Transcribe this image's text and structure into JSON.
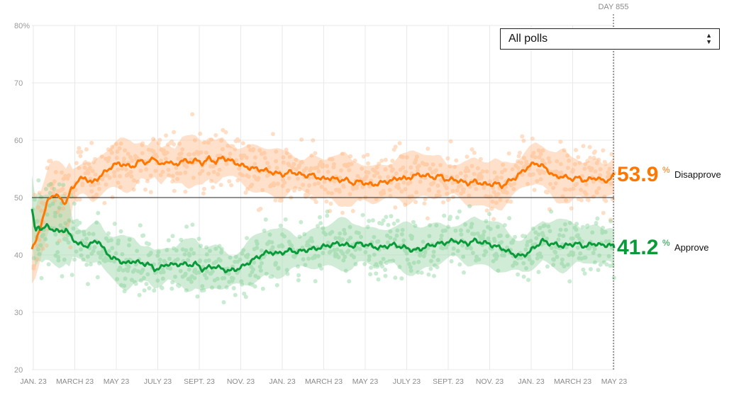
{
  "filter": {
    "label": "All polls",
    "options": [
      "All polls"
    ]
  },
  "day_marker": {
    "label": "DAY 855"
  },
  "colors": {
    "disapprove": "#ff7600",
    "approve": "#0a9a3a",
    "disapprove_light": "#ffc9a0",
    "approve_light": "#a9dcb4",
    "gridline": "#e8e8e8",
    "baseline": "#222222"
  },
  "chart_data": {
    "type": "line",
    "x_ticks": [
      "JAN. 23",
      "MARCH 23",
      "MAY 23",
      "JULY 23",
      "SEPT. 23",
      "NOV. 23",
      "JAN. 23",
      "MARCH 23",
      "MAY 23",
      "JULY 23",
      "SEPT. 23",
      "NOV. 23",
      "JAN. 23",
      "MARCH 23",
      "MAY 23"
    ],
    "y_ticks": [
      "80%",
      "70",
      "60",
      "50",
      "40",
      "30",
      "20"
    ],
    "ylim": [
      20,
      80
    ],
    "reference_line": 50,
    "x_day_range": [
      0,
      855
    ],
    "series": [
      {
        "name": "Disapprove",
        "final_value": "53.9",
        "points": [
          [
            0,
            41
          ],
          [
            5,
            42
          ],
          [
            10,
            44
          ],
          [
            15,
            46
          ],
          [
            20,
            48
          ],
          [
            25,
            50
          ],
          [
            32,
            50.5
          ],
          [
            40,
            50
          ],
          [
            50,
            49
          ],
          [
            58,
            51.5
          ],
          [
            68,
            53
          ],
          [
            78,
            53.5
          ],
          [
            88,
            52.5
          ],
          [
            98,
            53.5
          ],
          [
            108,
            54.5
          ],
          [
            118,
            55.5
          ],
          [
            128,
            56
          ],
          [
            140,
            55.5
          ],
          [
            150,
            55.5
          ],
          [
            160,
            56.5
          ],
          [
            170,
            56
          ],
          [
            180,
            57
          ],
          [
            190,
            55.5
          ],
          [
            200,
            56.5
          ],
          [
            210,
            55.5
          ],
          [
            220,
            56.5
          ],
          [
            230,
            56.2
          ],
          [
            240,
            56.5
          ],
          [
            250,
            56
          ],
          [
            260,
            56.8
          ],
          [
            270,
            56.2
          ],
          [
            280,
            57
          ],
          [
            290,
            56.5
          ],
          [
            300,
            56
          ],
          [
            310,
            55.5
          ],
          [
            320,
            55.2
          ],
          [
            330,
            55
          ],
          [
            340,
            54.8
          ],
          [
            350,
            54.5
          ],
          [
            360,
            54.2
          ],
          [
            370,
            54
          ],
          [
            380,
            54.5
          ],
          [
            390,
            54.2
          ],
          [
            400,
            53.8
          ],
          [
            410,
            54
          ],
          [
            420,
            53.5
          ],
          [
            430,
            53.2
          ],
          [
            440,
            53.5
          ],
          [
            450,
            53
          ],
          [
            460,
            53.2
          ],
          [
            470,
            52.5
          ],
          [
            480,
            52.8
          ],
          [
            490,
            52.5
          ],
          [
            500,
            52.2
          ],
          [
            510,
            52.5
          ],
          [
            520,
            52.8
          ],
          [
            530,
            53
          ],
          [
            540,
            53.5
          ],
          [
            550,
            53.2
          ],
          [
            560,
            53.8
          ],
          [
            570,
            54
          ],
          [
            580,
            53.8
          ],
          [
            590,
            53.5
          ],
          [
            600,
            53.8
          ],
          [
            610,
            53
          ],
          [
            620,
            53.2
          ],
          [
            630,
            52.8
          ],
          [
            640,
            52.5
          ],
          [
            650,
            52.8
          ],
          [
            660,
            52.5
          ],
          [
            670,
            52.2
          ],
          [
            680,
            52.5
          ],
          [
            690,
            52
          ],
          [
            700,
            52.8
          ],
          [
            710,
            53.5
          ],
          [
            720,
            54.5
          ],
          [
            730,
            55.5
          ],
          [
            740,
            56
          ],
          [
            750,
            55.5
          ],
          [
            760,
            54.5
          ],
          [
            770,
            53.5
          ],
          [
            780,
            53.8
          ],
          [
            790,
            53.2
          ],
          [
            800,
            53.5
          ],
          [
            810,
            53
          ],
          [
            820,
            53.2
          ],
          [
            830,
            53.5
          ],
          [
            840,
            52.8
          ],
          [
            848,
            53.2
          ],
          [
            855,
            53.9
          ]
        ]
      },
      {
        "name": "Approve",
        "final_value": "41.2",
        "points": [
          [
            0,
            48
          ],
          [
            5,
            44
          ],
          [
            10,
            45
          ],
          [
            15,
            44.5
          ],
          [
            22,
            45
          ],
          [
            30,
            44.5
          ],
          [
            40,
            44
          ],
          [
            50,
            44.5
          ],
          [
            58,
            43
          ],
          [
            68,
            42
          ],
          [
            78,
            41.5
          ],
          [
            88,
            42
          ],
          [
            98,
            42.5
          ],
          [
            108,
            40.5
          ],
          [
            118,
            39.5
          ],
          [
            128,
            39
          ],
          [
            140,
            38.5
          ],
          [
            150,
            39
          ],
          [
            160,
            38.5
          ],
          [
            170,
            38.5
          ],
          [
            180,
            37.5
          ],
          [
            190,
            37.8
          ],
          [
            200,
            38.5
          ],
          [
            210,
            38.2
          ],
          [
            220,
            38.5
          ],
          [
            230,
            38.2
          ],
          [
            240,
            38.5
          ],
          [
            250,
            37.5
          ],
          [
            260,
            37.8
          ],
          [
            270,
            38
          ],
          [
            280,
            37.5
          ],
          [
            290,
            37.2
          ],
          [
            300,
            37.5
          ],
          [
            310,
            38
          ],
          [
            320,
            38.8
          ],
          [
            330,
            39.5
          ],
          [
            340,
            40.2
          ],
          [
            350,
            40.5
          ],
          [
            360,
            40.2
          ],
          [
            370,
            40.5
          ],
          [
            380,
            40.8
          ],
          [
            390,
            40.5
          ],
          [
            400,
            40.8
          ],
          [
            410,
            41
          ],
          [
            420,
            41.2
          ],
          [
            430,
            41.5
          ],
          [
            440,
            41.8
          ],
          [
            450,
            42
          ],
          [
            460,
            41.8
          ],
          [
            470,
            41.5
          ],
          [
            480,
            42
          ],
          [
            490,
            41.8
          ],
          [
            500,
            41.5
          ],
          [
            510,
            41.2
          ],
          [
            520,
            41.5
          ],
          [
            530,
            41.8
          ],
          [
            540,
            41.5
          ],
          [
            550,
            41.2
          ],
          [
            560,
            40.8
          ],
          [
            570,
            41
          ],
          [
            580,
            41.5
          ],
          [
            590,
            41.8
          ],
          [
            600,
            42
          ],
          [
            610,
            42.2
          ],
          [
            620,
            42.5
          ],
          [
            630,
            42.2
          ],
          [
            640,
            42
          ],
          [
            650,
            42.5
          ],
          [
            660,
            42.2
          ],
          [
            670,
            42
          ],
          [
            680,
            41.5
          ],
          [
            690,
            41.2
          ],
          [
            700,
            40.5
          ],
          [
            710,
            40
          ],
          [
            720,
            39.8
          ],
          [
            730,
            40.5
          ],
          [
            740,
            41.5
          ],
          [
            750,
            42.5
          ],
          [
            760,
            42
          ],
          [
            770,
            41.8
          ],
          [
            780,
            41.5
          ],
          [
            790,
            41.8
          ],
          [
            800,
            42
          ],
          [
            810,
            41.5
          ],
          [
            820,
            41.8
          ],
          [
            830,
            42
          ],
          [
            840,
            41.5
          ],
          [
            848,
            42
          ],
          [
            855,
            41.2
          ]
        ]
      }
    ],
    "grid": true,
    "legend": "end-labels-right"
  }
}
